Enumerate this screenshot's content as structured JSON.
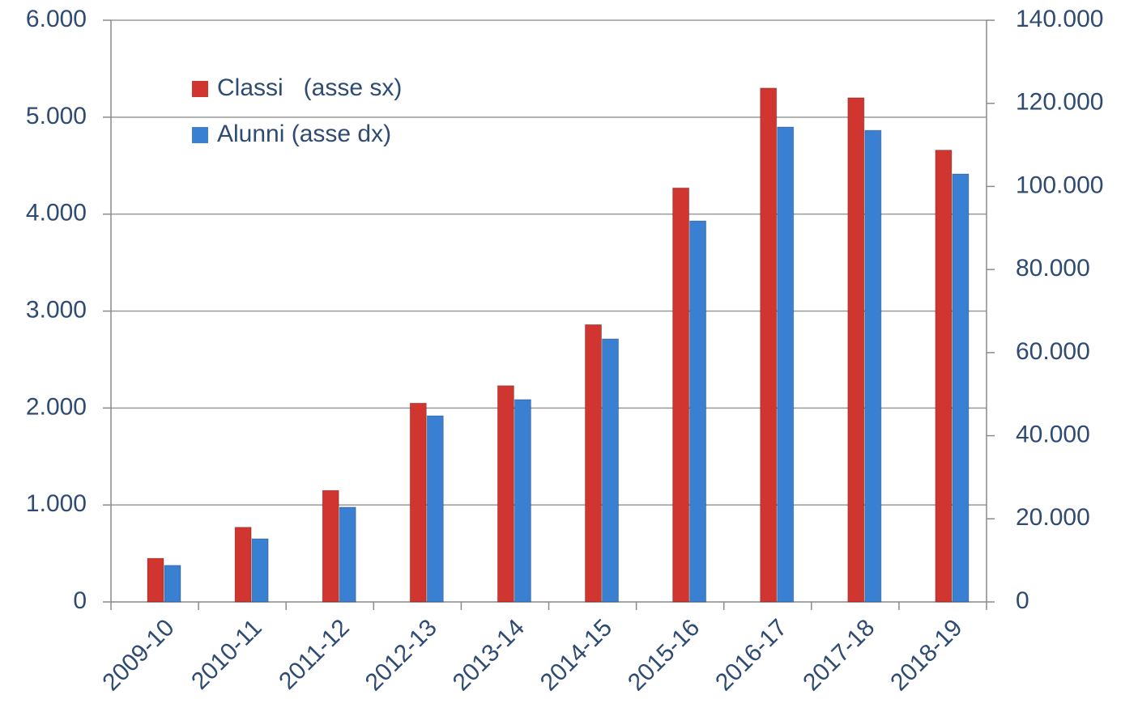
{
  "chart_data": {
    "type": "bar",
    "categories": [
      "2009-10",
      "2010-11",
      "2011-12",
      "2012-13",
      "2013-14",
      "2014-15",
      "2015-16",
      "2016-17",
      "2017-18",
      "2018-19"
    ],
    "series": [
      {
        "name": "Classi   (asse sx)",
        "color": "#d0352f",
        "values": [
          450,
          770,
          1150,
          2050,
          2230,
          2860,
          4270,
          5300,
          5200,
          4660
        ]
      },
      {
        "name": "Alunni (asse dx)",
        "color": "#3a80d2",
        "axis": "y2",
        "values": [
          8800,
          15200,
          22800,
          44800,
          48700,
          63300,
          91700,
          114300,
          113500,
          103000
        ]
      }
    ],
    "ylim": [
      0,
      6000
    ],
    "yticks": [
      0,
      {
        "value": 1000,
        "label": "1.000"
      },
      {
        "value": 2000,
        "label": "2.000"
      },
      {
        "value": 3000,
        "label": "3.000"
      },
      {
        "value": 4000,
        "label": "4.000"
      },
      {
        "value": 5000,
        "label": "5.000"
      },
      {
        "value": 6000,
        "label": "6.000"
      }
    ],
    "y2lim": [
      0,
      140000
    ],
    "y2ticks": [
      0,
      {
        "value": 20000,
        "label": "20.000"
      },
      {
        "value": 40000,
        "label": "40.000"
      },
      {
        "value": 60000,
        "label": "60.000"
      },
      {
        "value": 80000,
        "label": "80.000"
      },
      {
        "value": 100000,
        "label": "100.000"
      },
      {
        "value": 120000,
        "label": "120.000"
      },
      {
        "value": 140000,
        "label": "140.000"
      }
    ],
    "grid": true,
    "legend": "upper left"
  }
}
